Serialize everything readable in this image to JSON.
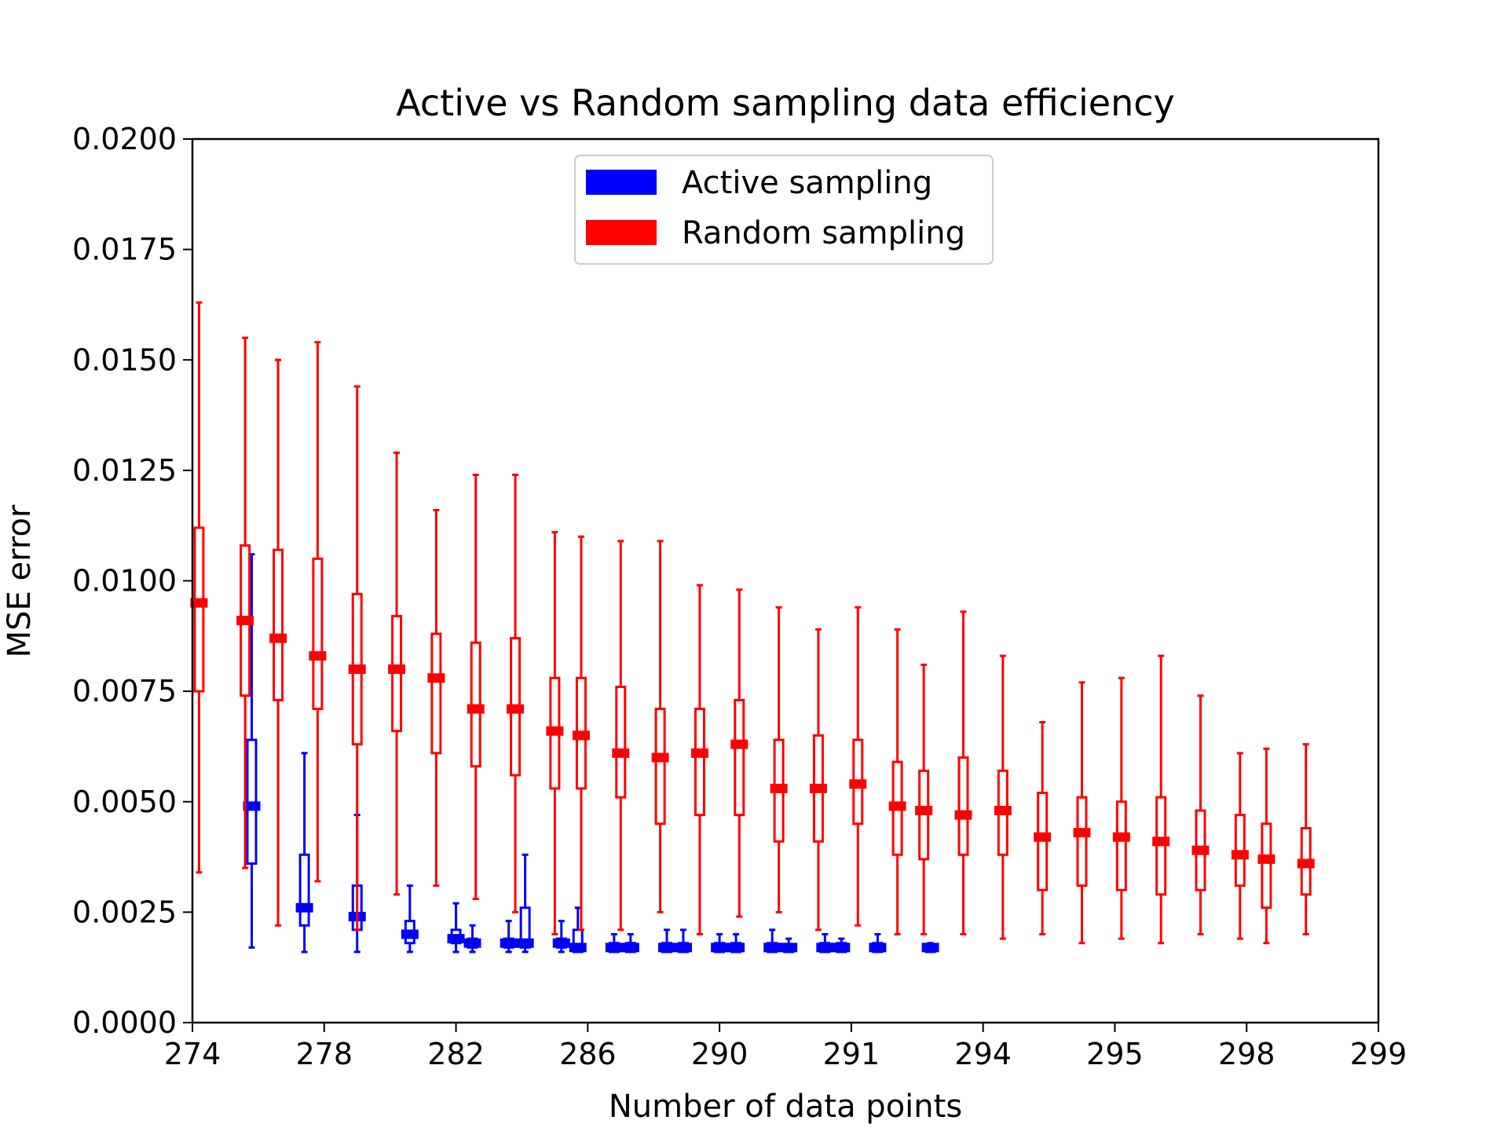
{
  "chart_data": {
    "type": "box",
    "title": "Active vs Random sampling data efficiency",
    "xlabel": "Number of data points",
    "ylabel": "MSE error",
    "ylim": [
      0,
      0.02
    ],
    "yticks": [
      "0.0000",
      "0.0025",
      "0.0050",
      "0.0075",
      "0.0100",
      "0.0125",
      "0.0150",
      "0.0175",
      "0.0200"
    ],
    "xticks": [
      "274",
      "278",
      "282",
      "286",
      "290",
      "291",
      "294",
      "295",
      "298",
      "299"
    ],
    "legend_position": "upper-center",
    "grid": false,
    "series": [
      {
        "name": "Active sampling",
        "color": "#0000ff",
        "boxes": [
          {
            "pos": 0.9,
            "min": 0.0017,
            "q1": 0.0036,
            "median": 0.0049,
            "q3": 0.0064,
            "max": 0.0106
          },
          {
            "pos": 1.7,
            "min": 0.0016,
            "q1": 0.0022,
            "median": 0.0026,
            "q3": 0.0038,
            "max": 0.0061
          },
          {
            "pos": 2.5,
            "min": 0.0016,
            "q1": 0.0021,
            "median": 0.0024,
            "q3": 0.0031,
            "max": 0.0047
          },
          {
            "pos": 3.3,
            "min": 0.0016,
            "q1": 0.0018,
            "median": 0.002,
            "q3": 0.0023,
            "max": 0.0031
          },
          {
            "pos": 4.0,
            "min": 0.0016,
            "q1": 0.0018,
            "median": 0.0019,
            "q3": 0.0021,
            "max": 0.0027
          },
          {
            "pos": 4.25,
            "min": 0.0016,
            "q1": 0.0017,
            "median": 0.0018,
            "q3": 0.0019,
            "max": 0.0022
          },
          {
            "pos": 4.8,
            "min": 0.0016,
            "q1": 0.0017,
            "median": 0.0018,
            "q3": 0.0019,
            "max": 0.0023
          },
          {
            "pos": 5.05,
            "min": 0.0016,
            "q1": 0.0017,
            "median": 0.0018,
            "q3": 0.0026,
            "max": 0.0038
          },
          {
            "pos": 5.6,
            "min": 0.0016,
            "q1": 0.0017,
            "median": 0.0018,
            "q3": 0.0019,
            "max": 0.0023
          },
          {
            "pos": 5.85,
            "min": 0.0016,
            "q1": 0.0016,
            "median": 0.0017,
            "q3": 0.0021,
            "max": 0.0026
          },
          {
            "pos": 6.4,
            "min": 0.0016,
            "q1": 0.0016,
            "median": 0.0017,
            "q3": 0.0018,
            "max": 0.002
          },
          {
            "pos": 6.65,
            "min": 0.0016,
            "q1": 0.0016,
            "median": 0.0017,
            "q3": 0.0018,
            "max": 0.002
          },
          {
            "pos": 7.2,
            "min": 0.0016,
            "q1": 0.0016,
            "median": 0.0017,
            "q3": 0.0018,
            "max": 0.0021
          },
          {
            "pos": 7.45,
            "min": 0.0016,
            "q1": 0.0016,
            "median": 0.0017,
            "q3": 0.0018,
            "max": 0.0021
          },
          {
            "pos": 8.0,
            "min": 0.0016,
            "q1": 0.0016,
            "median": 0.0017,
            "q3": 0.0018,
            "max": 0.002
          },
          {
            "pos": 8.25,
            "min": 0.0016,
            "q1": 0.0016,
            "median": 0.0017,
            "q3": 0.0018,
            "max": 0.002
          },
          {
            "pos": 8.8,
            "min": 0.0016,
            "q1": 0.0016,
            "median": 0.0017,
            "q3": 0.0018,
            "max": 0.0021
          },
          {
            "pos": 9.05,
            "min": 0.0016,
            "q1": 0.0016,
            "median": 0.0017,
            "q3": 0.0017,
            "max": 0.0019
          },
          {
            "pos": 9.6,
            "min": 0.0016,
            "q1": 0.0016,
            "median": 0.0017,
            "q3": 0.0018,
            "max": 0.002
          },
          {
            "pos": 9.85,
            "min": 0.0016,
            "q1": 0.0016,
            "median": 0.0017,
            "q3": 0.0018,
            "max": 0.0019
          },
          {
            "pos": 10.4,
            "min": 0.0016,
            "q1": 0.0016,
            "median": 0.0017,
            "q3": 0.0018,
            "max": 0.002
          },
          {
            "pos": 11.2,
            "min": 0.0016,
            "q1": 0.0016,
            "median": 0.0017,
            "q3": 0.0017,
            "max": 0.0018
          }
        ]
      },
      {
        "name": "Random sampling",
        "color": "#ff0000",
        "boxes": [
          {
            "pos": 0.1,
            "min": 0.0034,
            "q1": 0.0075,
            "median": 0.0095,
            "q3": 0.0112,
            "max": 0.0163
          },
          {
            "pos": 0.8,
            "min": 0.0035,
            "q1": 0.0074,
            "median": 0.0091,
            "q3": 0.0108,
            "max": 0.0155
          },
          {
            "pos": 1.3,
            "min": 0.0022,
            "q1": 0.0073,
            "median": 0.0087,
            "q3": 0.0107,
            "max": 0.015
          },
          {
            "pos": 1.9,
            "min": 0.0032,
            "q1": 0.0071,
            "median": 0.0083,
            "q3": 0.0105,
            "max": 0.0154
          },
          {
            "pos": 2.5,
            "min": 0.0021,
            "q1": 0.0063,
            "median": 0.008,
            "q3": 0.0097,
            "max": 0.0144
          },
          {
            "pos": 3.1,
            "min": 0.0029,
            "q1": 0.0066,
            "median": 0.008,
            "q3": 0.0092,
            "max": 0.0129
          },
          {
            "pos": 3.7,
            "min": 0.0031,
            "q1": 0.0061,
            "median": 0.0078,
            "q3": 0.0088,
            "max": 0.0116
          },
          {
            "pos": 4.3,
            "min": 0.0028,
            "q1": 0.0058,
            "median": 0.0071,
            "q3": 0.0086,
            "max": 0.0124
          },
          {
            "pos": 4.9,
            "min": 0.0025,
            "q1": 0.0056,
            "median": 0.0071,
            "q3": 0.0087,
            "max": 0.0124
          },
          {
            "pos": 5.5,
            "min": 0.002,
            "q1": 0.0053,
            "median": 0.0066,
            "q3": 0.0078,
            "max": 0.0111
          },
          {
            "pos": 5.9,
            "min": 0.0021,
            "q1": 0.0053,
            "median": 0.0065,
            "q3": 0.0078,
            "max": 0.011
          },
          {
            "pos": 6.5,
            "min": 0.0021,
            "q1": 0.0051,
            "median": 0.0061,
            "q3": 0.0076,
            "max": 0.0109
          },
          {
            "pos": 7.1,
            "min": 0.0025,
            "q1": 0.0045,
            "median": 0.006,
            "q3": 0.0071,
            "max": 0.0109
          },
          {
            "pos": 7.7,
            "min": 0.002,
            "q1": 0.0047,
            "median": 0.0061,
            "q3": 0.0071,
            "max": 0.0099
          },
          {
            "pos": 8.3,
            "min": 0.0024,
            "q1": 0.0047,
            "median": 0.0063,
            "q3": 0.0073,
            "max": 0.0098
          },
          {
            "pos": 8.9,
            "min": 0.0025,
            "q1": 0.0041,
            "median": 0.0053,
            "q3": 0.0064,
            "max": 0.0094
          },
          {
            "pos": 9.5,
            "min": 0.0021,
            "q1": 0.0041,
            "median": 0.0053,
            "q3": 0.0065,
            "max": 0.0089
          },
          {
            "pos": 10.1,
            "min": 0.0022,
            "q1": 0.0045,
            "median": 0.0054,
            "q3": 0.0064,
            "max": 0.0094
          },
          {
            "pos": 10.7,
            "min": 0.002,
            "q1": 0.0038,
            "median": 0.0049,
            "q3": 0.0059,
            "max": 0.0089
          },
          {
            "pos": 11.1,
            "min": 0.002,
            "q1": 0.0037,
            "median": 0.0048,
            "q3": 0.0057,
            "max": 0.0081
          },
          {
            "pos": 11.7,
            "min": 0.002,
            "q1": 0.0038,
            "median": 0.0047,
            "q3": 0.006,
            "max": 0.0093
          },
          {
            "pos": 12.3,
            "min": 0.0019,
            "q1": 0.0038,
            "median": 0.0048,
            "q3": 0.0057,
            "max": 0.0083
          },
          {
            "pos": 12.9,
            "min": 0.002,
            "q1": 0.003,
            "median": 0.0042,
            "q3": 0.0052,
            "max": 0.0068
          },
          {
            "pos": 13.5,
            "min": 0.0018,
            "q1": 0.0031,
            "median": 0.0043,
            "q3": 0.0051,
            "max": 0.0077
          },
          {
            "pos": 14.1,
            "min": 0.0019,
            "q1": 0.003,
            "median": 0.0042,
            "q3": 0.005,
            "max": 0.0078
          },
          {
            "pos": 14.7,
            "min": 0.0018,
            "q1": 0.0029,
            "median": 0.0041,
            "q3": 0.0051,
            "max": 0.0083
          },
          {
            "pos": 15.3,
            "min": 0.002,
            "q1": 0.003,
            "median": 0.0039,
            "q3": 0.0048,
            "max": 0.0074
          },
          {
            "pos": 15.9,
            "min": 0.0019,
            "q1": 0.0031,
            "median": 0.0038,
            "q3": 0.0047,
            "max": 0.0061
          },
          {
            "pos": 16.3,
            "min": 0.0018,
            "q1": 0.0026,
            "median": 0.0037,
            "q3": 0.0045,
            "max": 0.0062
          },
          {
            "pos": 16.9,
            "min": 0.002,
            "q1": 0.0029,
            "median": 0.0036,
            "q3": 0.0044,
            "max": 0.0063
          }
        ]
      }
    ]
  }
}
